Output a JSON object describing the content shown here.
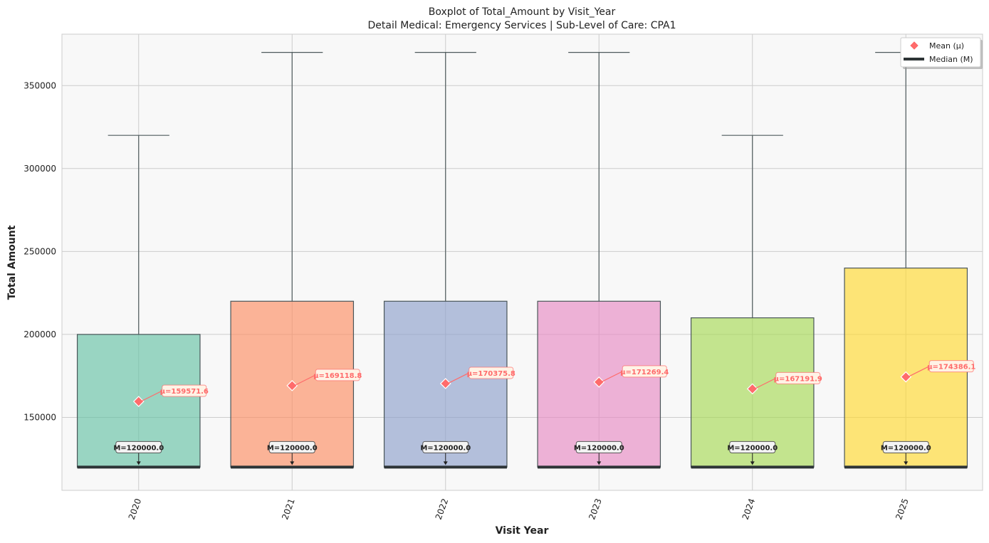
{
  "chart_data": {
    "type": "box",
    "title": "Boxplot of Total_Amount by Visit_Year",
    "subtitle": "Detail Medical: Emergency Services | Sub-Level of Care: CPA1",
    "xlabel": "Visit Year",
    "ylabel": "Total Amount",
    "ylim": [
      106000,
      381000
    ],
    "yticks": [
      150000,
      200000,
      250000,
      300000,
      350000
    ],
    "grid": true,
    "legend_position": "top-right",
    "legend": [
      {
        "label": "Mean (μ)",
        "marker": "diamond",
        "color": "#ff6b6b"
      },
      {
        "label": "Median (M)",
        "marker": "line",
        "color": "#2d3436"
      }
    ],
    "categories": [
      "2020",
      "2021",
      "2022",
      "2023",
      "2024",
      "2025"
    ],
    "boxes": [
      {
        "category": "2020",
        "whisker_low": 120000,
        "q1": 120000,
        "median": 120000,
        "q3": 200000,
        "whisker_high": 320000,
        "mean": 159571.6,
        "color": "#66c2a5",
        "median_label": "M=120000.0",
        "mean_label": "μ=159571.6"
      },
      {
        "category": "2021",
        "whisker_low": 120000,
        "q1": 120000,
        "median": 120000,
        "q3": 220000,
        "whisker_high": 370000,
        "mean": 169118.8,
        "color": "#fc8d62",
        "median_label": "M=120000.0",
        "mean_label": "μ=169118.8"
      },
      {
        "category": "2022",
        "whisker_low": 120000,
        "q1": 120000,
        "median": 120000,
        "q3": 220000,
        "whisker_high": 370000,
        "mean": 170375.8,
        "color": "#8da0cb",
        "median_label": "M=120000.0",
        "mean_label": "μ=170375.8"
      },
      {
        "category": "2023",
        "whisker_low": 120000,
        "q1": 120000,
        "median": 120000,
        "q3": 220000,
        "whisker_high": 370000,
        "mean": 171269.4,
        "color": "#e78ac3",
        "median_label": "M=120000.0",
        "mean_label": "μ=171269.4"
      },
      {
        "category": "2024",
        "whisker_low": 120000,
        "q1": 120000,
        "median": 120000,
        "q3": 210000,
        "whisker_high": 320000,
        "mean": 167191.9,
        "color": "#a6d854",
        "median_label": "M=120000.0",
        "mean_label": "μ=167191.9"
      },
      {
        "category": "2025",
        "whisker_low": 120000,
        "q1": 120000,
        "median": 120000,
        "q3": 240000,
        "whisker_high": 370000,
        "mean": 174386.1,
        "color": "#ffd92f",
        "median_label": "M=120000.0",
        "mean_label": "μ=174386.1"
      }
    ],
    "colors": {
      "mean": "#ff6b6b",
      "median": "#2d3436",
      "box_edge": "#4a5659",
      "whisker": "#4f5b5d",
      "grid": "#cccccc",
      "plot_bg": "#f8f8f8"
    }
  }
}
